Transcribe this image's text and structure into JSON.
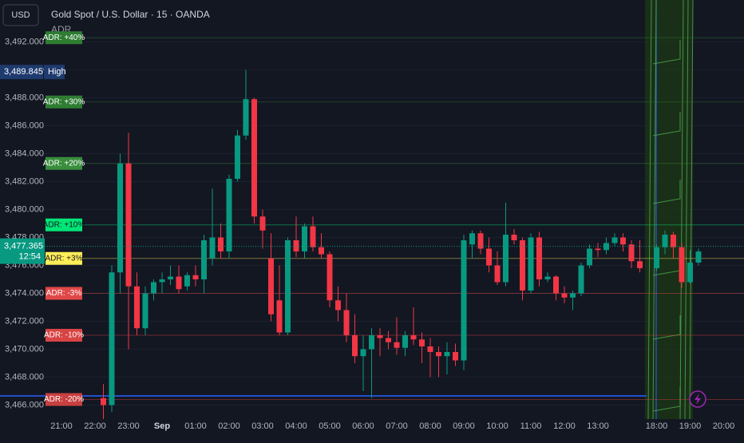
{
  "header": {
    "currency": "USD",
    "title": "Gold Spot / U.S. Dollar · 15 · OANDA",
    "indicator": "ADR"
  },
  "chart_data": {
    "type": "candlestick",
    "categories": [
      "21:00",
      null,
      null,
      null,
      "22:00",
      null,
      null,
      null,
      "23:00",
      null,
      null,
      null,
      "Sep",
      null,
      null,
      null,
      "01:00",
      null,
      null,
      null,
      "02:00",
      null,
      null,
      null,
      "03:00",
      null,
      null,
      null,
      "04:00",
      null,
      null,
      null,
      "05:00",
      null,
      null,
      null,
      "06:00",
      null,
      null,
      null,
      "07:00",
      null,
      null,
      null,
      "08:00",
      null,
      null,
      null,
      "09:00",
      null,
      null,
      null,
      "10:00",
      null,
      null,
      null,
      "11:00",
      null,
      null,
      null,
      "12:00",
      null,
      null,
      null,
      "13:00",
      null,
      null,
      null,
      null,
      null,
      null,
      "18:00",
      null,
      null,
      null,
      "19:00",
      null,
      null,
      null,
      "20:00"
    ],
    "candles": [
      null,
      null,
      null,
      null,
      null,
      [
        3466.5,
        3467.5,
        3465,
        3466
      ],
      [
        3466,
        3476,
        3465.5,
        3475.5
      ],
      [
        3475.5,
        3484,
        3474,
        3483.3
      ],
      [
        3483.3,
        3485.5,
        3470,
        3474.5
      ],
      [
        3474.5,
        3475.5,
        3471,
        3471.5
      ],
      [
        3471.5,
        3474.5,
        3471,
        3474
      ],
      [
        3474,
        3475,
        3473.5,
        3474.8
      ],
      [
        3474.8,
        3475.5,
        3474,
        3475
      ],
      [
        3475,
        3476,
        3474.6,
        3475.2
      ],
      [
        3475.2,
        3476,
        3474,
        3474.3
      ],
      [
        3474.5,
        3475.5,
        3474.2,
        3475.3
      ],
      [
        3475.3,
        3476,
        3474.5,
        3475
      ],
      [
        3475,
        3478.2,
        3474,
        3477.8
      ],
      [
        3476.5,
        3481.5,
        3476,
        3478
      ],
      [
        3478,
        3479,
        3476.5,
        3477
      ],
      [
        3477,
        3482.5,
        3476.5,
        3482.2
      ],
      [
        3482.2,
        3485.7,
        3482,
        3485.3
      ],
      [
        3485.3,
        3490,
        3485,
        3487.9
      ],
      [
        3487.9,
        3488,
        3479,
        3479.5
      ],
      [
        3479.5,
        3480,
        3477.2,
        3478.5
      ],
      [
        3476.5,
        3478.3,
        3472,
        3472.5
      ],
      [
        3473.5,
        3476,
        3471,
        3471.2
      ],
      [
        3471.2,
        3478,
        3471,
        3477.8
      ],
      [
        3477.8,
        3479.5,
        3476.6,
        3477
      ],
      [
        3477,
        3479,
        3476.5,
        3478.8
      ],
      [
        3478.8,
        3479.5,
        3477,
        3477.3
      ],
      [
        3477.3,
        3478.3,
        3476.5,
        3476.8
      ],
      [
        3476.8,
        3477,
        3473,
        3473.5
      ],
      [
        3473.5,
        3474.5,
        3472,
        3472.8
      ],
      [
        3472.8,
        3474,
        3470.5,
        3471
      ],
      [
        3471,
        3472.5,
        3469,
        3469.5
      ],
      [
        3469.5,
        3471,
        3467,
        3470
      ],
      [
        3470,
        3471.5,
        3466.5,
        3471
      ],
      [
        3471,
        3471.5,
        3469.5,
        3470.8
      ],
      [
        3470.8,
        3471.3,
        3470,
        3470.5
      ],
      [
        3470.5,
        3472.3,
        3469.6,
        3470.1
      ],
      [
        3470.1,
        3471.3,
        3469.5,
        3471
      ],
      [
        3471,
        3473,
        3470.3,
        3470.7
      ],
      [
        3470.7,
        3471.2,
        3469,
        3470.2
      ],
      [
        3470.2,
        3470.8,
        3468,
        3469.8
      ],
      [
        3469.8,
        3470.2,
        3468,
        3469.5
      ],
      [
        3469.5,
        3470.5,
        3468.2,
        3469.8
      ],
      [
        3469.8,
        3470.4,
        3468.8,
        3469.2
      ],
      [
        3469.2,
        3478.2,
        3468.5,
        3477.8
      ],
      [
        3477.5,
        3478.5,
        3476.5,
        3478.3
      ],
      [
        3478.3,
        3478.5,
        3476.8,
        3477.2
      ],
      [
        3477.2,
        3478,
        3475.5,
        3476
      ],
      [
        3476,
        3477,
        3474.6,
        3474.8
      ],
      [
        3474.8,
        3480.5,
        3474.5,
        3478.2
      ],
      [
        3478.2,
        3478.6,
        3477.5,
        3477.8
      ],
      [
        3477.8,
        3478,
        3473.5,
        3474.2
      ],
      [
        3474.2,
        3478.3,
        3474,
        3478
      ],
      [
        3478,
        3478.4,
        3474.5,
        3475
      ],
      [
        3475,
        3475.5,
        3474.8,
        3475.2
      ],
      [
        3475.2,
        3475.3,
        3473.5,
        3474
      ],
      [
        3474,
        3474.5,
        3473.3,
        3473.7
      ],
      [
        3473.7,
        3474.2,
        3472.8,
        3474
      ],
      [
        3474,
        3476.2,
        3473.8,
        3476
      ],
      [
        3476,
        3477.5,
        3475.8,
        3477.2
      ],
      [
        3477.2,
        3477.6,
        3476.6,
        3477.1
      ],
      [
        3477.1,
        3478,
        3476.8,
        3477.6
      ],
      [
        3477.6,
        3478.3,
        3477.4,
        3478
      ],
      [
        3478,
        3478.3,
        3477,
        3477.5
      ],
      [
        3477.5,
        3477.8,
        3475.8,
        3476.3
      ],
      [
        3476.3,
        3477.8,
        3475.5,
        3475.8
      ],
      null,
      [
        3475.8,
        3477.5,
        3475.6,
        3477.3
      ],
      [
        3477.3,
        3478.5,
        3476.8,
        3478.2
      ],
      [
        3478.2,
        3478.4,
        3476.5,
        3477.3
      ],
      [
        3477.3,
        3477.6,
        3474.4,
        3474.8
      ],
      [
        3474.8,
        3477.1,
        3474.7,
        3476.2
      ],
      [
        3476.2,
        3477.2,
        3476,
        3477
      ],
      null,
      null,
      null
    ],
    "up_color": "#089981",
    "down_color": "#f23645",
    "ylim": [
      3465,
      3495
    ],
    "yticks": [
      {
        "value": 3466,
        "label": "3,466.000"
      },
      {
        "value": 3468,
        "label": "3,468.000"
      },
      {
        "value": 3470,
        "label": "3,470.000"
      },
      {
        "value": 3472,
        "label": "3,472.000"
      },
      {
        "value": 3474,
        "label": "3,474.000"
      },
      {
        "value": 3476,
        "label": "3,476.000"
      },
      {
        "value": 3478,
        "label": "3,478.000"
      },
      {
        "value": 3480,
        "label": "3,480.000"
      },
      {
        "value": 3482,
        "label": "3,482.000"
      },
      {
        "value": 3484,
        "label": "3,484.000"
      },
      {
        "value": 3486,
        "label": "3,486.000"
      },
      {
        "value": 3488,
        "label": "3,488.000"
      },
      {
        "value": 3490,
        "label": "3,490.000"
      },
      {
        "value": 3492,
        "label": "3,492.000"
      }
    ],
    "adr_levels": [
      {
        "label": "ADR: +40%",
        "value": 3492.3,
        "color": "#2e7d32"
      },
      {
        "label": "ADR: +30%",
        "value": 3487.7,
        "color": "#2e7d32"
      },
      {
        "label": "ADR: +20%",
        "value": 3483.3,
        "color": "#388e3c"
      },
      {
        "label": "ADR: +10%",
        "value": 3478.9,
        "color": "#00e676"
      },
      {
        "label": "ADR: +3%",
        "value": 3476.5,
        "color": "#ffee58"
      },
      {
        "label": "ADR: -3%",
        "value": 3474.0,
        "color": "#e04848"
      },
      {
        "label": "ADR: -10%",
        "value": 3471.0,
        "color": "#d84343"
      },
      {
        "label": "ADR: -20%",
        "value": 3466.4,
        "color": "#c94040"
      }
    ],
    "high": {
      "value": 3489.845,
      "label": "3,489.845",
      "text": "High"
    },
    "last": {
      "value": 3477.365,
      "label": "3,477.365",
      "countdown": "12:54"
    }
  }
}
